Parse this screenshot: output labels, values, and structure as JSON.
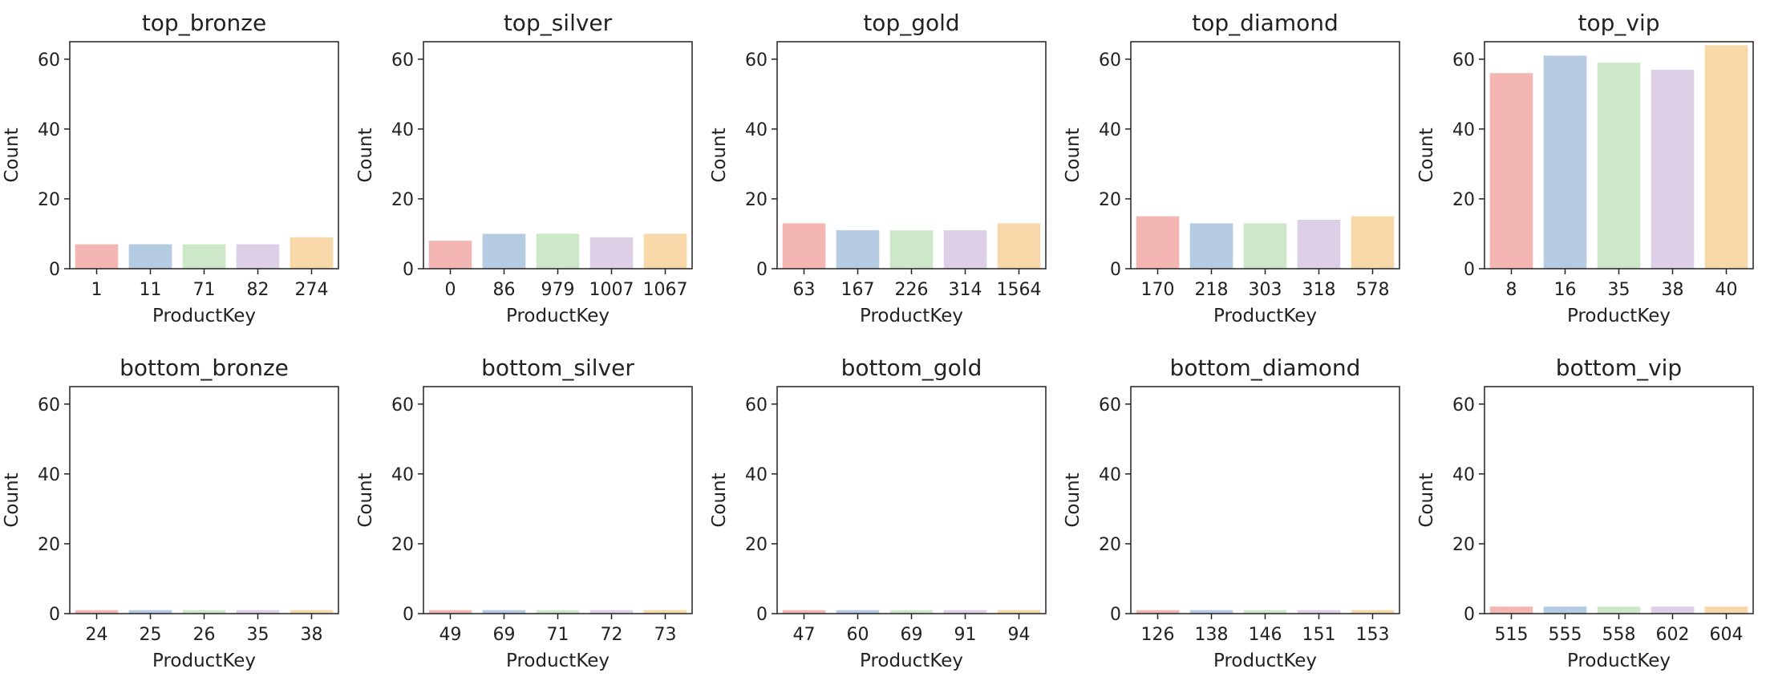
{
  "chart_data": [
    {
      "type": "bar",
      "title": "top_bronze",
      "categories": [
        "1",
        "11",
        "71",
        "82",
        "274"
      ],
      "values": [
        7,
        7,
        7,
        7,
        9
      ],
      "xlabel": "ProductKey",
      "ylabel": "Count",
      "ylim": [
        0,
        65
      ],
      "yticks": [
        0,
        20,
        40,
        60
      ]
    },
    {
      "type": "bar",
      "title": "top_silver",
      "categories": [
        "0",
        "86",
        "979",
        "1007",
        "1067"
      ],
      "values": [
        8,
        10,
        10,
        9,
        10
      ],
      "xlabel": "ProductKey",
      "ylabel": "Count",
      "ylim": [
        0,
        65
      ],
      "yticks": [
        0,
        20,
        40,
        60
      ]
    },
    {
      "type": "bar",
      "title": "top_gold",
      "categories": [
        "63",
        "167",
        "226",
        "314",
        "1564"
      ],
      "values": [
        13,
        11,
        11,
        11,
        13
      ],
      "xlabel": "ProductKey",
      "ylabel": "Count",
      "ylim": [
        0,
        65
      ],
      "yticks": [
        0,
        20,
        40,
        60
      ]
    },
    {
      "type": "bar",
      "title": "top_diamond",
      "categories": [
        "170",
        "218",
        "303",
        "318",
        "578"
      ],
      "values": [
        15,
        13,
        13,
        14,
        15
      ],
      "xlabel": "ProductKey",
      "ylabel": "Count",
      "ylim": [
        0,
        65
      ],
      "yticks": [
        0,
        20,
        40,
        60
      ]
    },
    {
      "type": "bar",
      "title": "top_vip",
      "categories": [
        "8",
        "16",
        "35",
        "38",
        "40"
      ],
      "values": [
        56,
        61,
        59,
        57,
        64
      ],
      "xlabel": "ProductKey",
      "ylabel": "Count",
      "ylim": [
        0,
        65
      ],
      "yticks": [
        0,
        20,
        40,
        60
      ]
    },
    {
      "type": "bar",
      "title": "bottom_bronze",
      "categories": [
        "24",
        "25",
        "26",
        "35",
        "38"
      ],
      "values": [
        1,
        1,
        1,
        1,
        1
      ],
      "xlabel": "ProductKey",
      "ylabel": "Count",
      "ylim": [
        0,
        65
      ],
      "yticks": [
        0,
        20,
        40,
        60
      ]
    },
    {
      "type": "bar",
      "title": "bottom_silver",
      "categories": [
        "49",
        "69",
        "71",
        "72",
        "73"
      ],
      "values": [
        1,
        1,
        1,
        1,
        1
      ],
      "xlabel": "ProductKey",
      "ylabel": "Count",
      "ylim": [
        0,
        65
      ],
      "yticks": [
        0,
        20,
        40,
        60
      ]
    },
    {
      "type": "bar",
      "title": "bottom_gold",
      "categories": [
        "47",
        "60",
        "69",
        "91",
        "94"
      ],
      "values": [
        1,
        1,
        1,
        1,
        1
      ],
      "xlabel": "ProductKey",
      "ylabel": "Count",
      "ylim": [
        0,
        65
      ],
      "yticks": [
        0,
        20,
        40,
        60
      ]
    },
    {
      "type": "bar",
      "title": "bottom_diamond",
      "categories": [
        "126",
        "138",
        "146",
        "151",
        "153"
      ],
      "values": [
        1,
        1,
        1,
        1,
        1
      ],
      "xlabel": "ProductKey",
      "ylabel": "Count",
      "ylim": [
        0,
        65
      ],
      "yticks": [
        0,
        20,
        40,
        60
      ]
    },
    {
      "type": "bar",
      "title": "bottom_vip",
      "categories": [
        "515",
        "555",
        "558",
        "602",
        "604"
      ],
      "values": [
        2,
        2,
        2,
        2,
        2
      ],
      "xlabel": "ProductKey",
      "ylabel": "Count",
      "ylim": [
        0,
        65
      ],
      "yticks": [
        0,
        20,
        40,
        60
      ]
    }
  ],
  "palette": [
    "#f4b6b3",
    "#b5cbe1",
    "#cde8c9",
    "#dccfe6",
    "#f8d8a8"
  ],
  "grid": false
}
